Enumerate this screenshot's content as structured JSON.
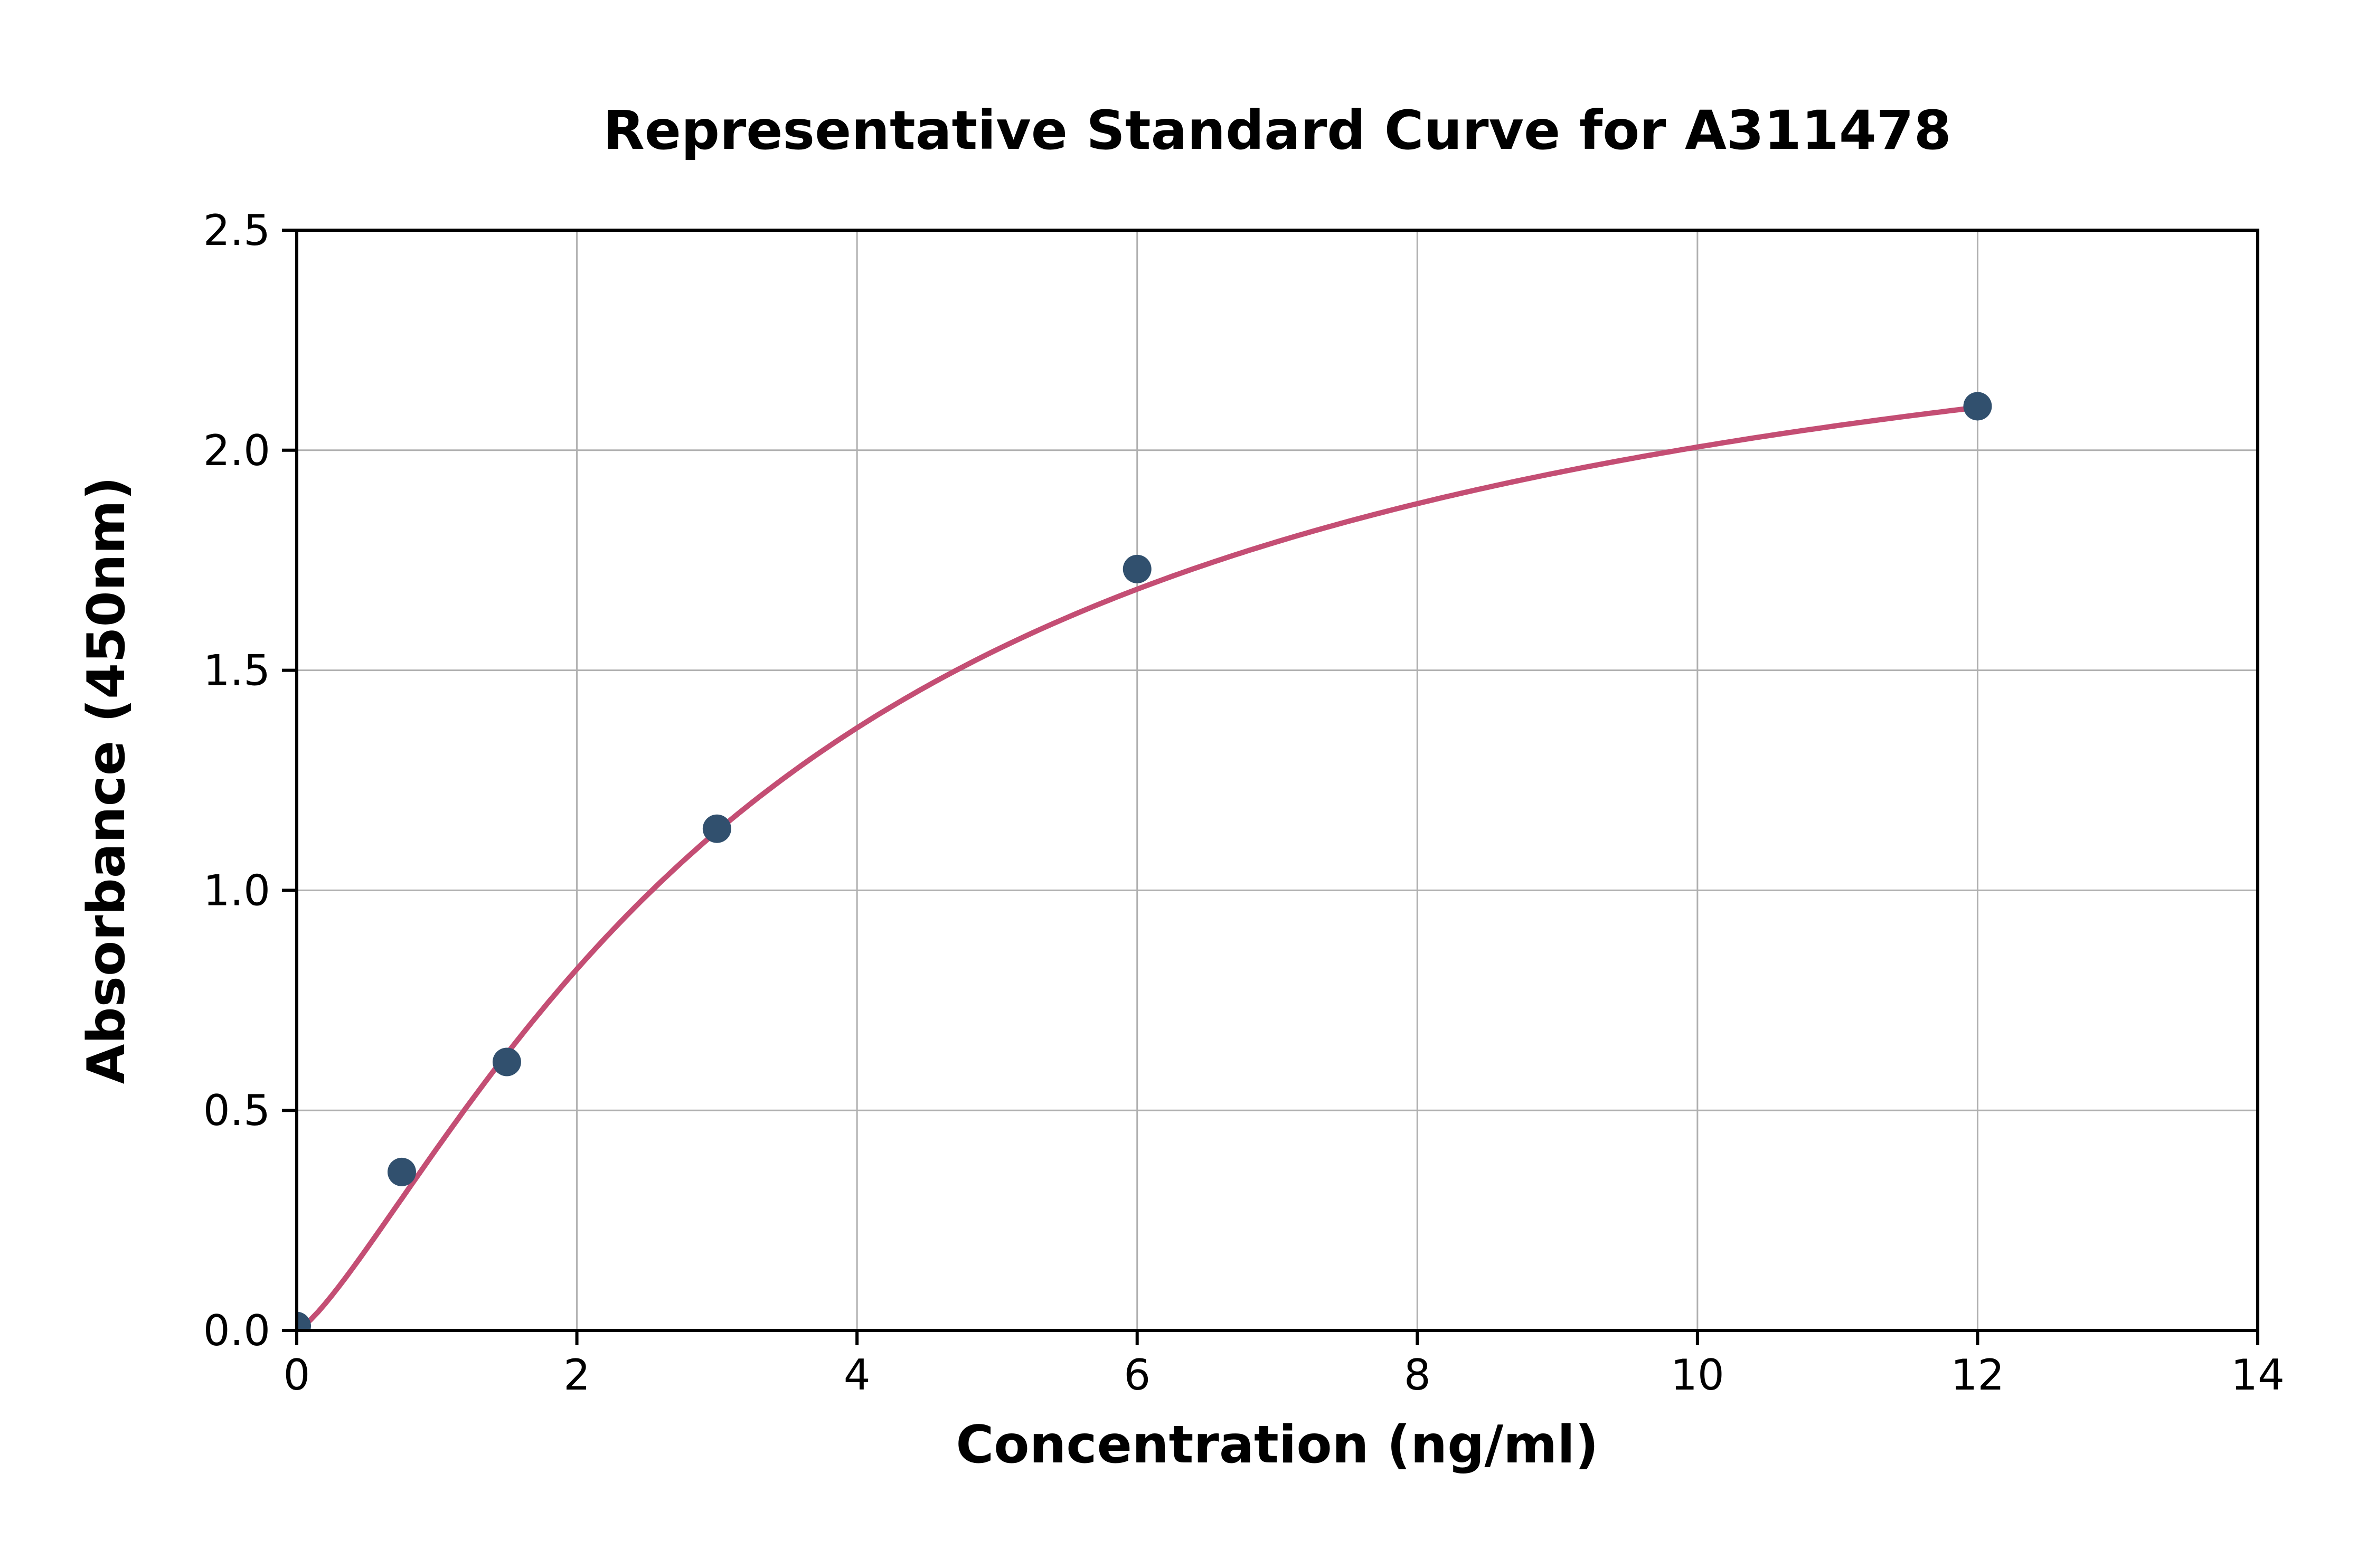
{
  "chart_data": {
    "type": "scatter",
    "title": "Representative Standard Curve for A311478",
    "xlabel": "Concentration (ng/ml)",
    "ylabel": "Absorbance (450nm)",
    "xlim": [
      0,
      14
    ],
    "ylim": [
      0,
      2.5
    ],
    "x_ticks": [
      0,
      2,
      4,
      6,
      8,
      10,
      12,
      14
    ],
    "x_tick_labels": [
      "0",
      "2",
      "4",
      "6",
      "8",
      "10",
      "12",
      "14"
    ],
    "y_ticks": [
      0,
      0.5,
      1,
      1.5,
      2,
      2.5
    ],
    "y_tick_labels": [
      "0.0",
      "0.5",
      "1.0",
      "1.5",
      "2.0",
      "2.5"
    ],
    "grid": true,
    "legend": "none",
    "points": [
      [
        0,
        0.01
      ],
      [
        0.75,
        0.36
      ],
      [
        1.5,
        0.61
      ],
      [
        3,
        1.14
      ],
      [
        6,
        1.73
      ],
      [
        12,
        2.1
      ]
    ],
    "fit_curve": {
      "model": "4PL",
      "a": 0,
      "b": 1.3,
      "c": 3.5,
      "d": 2.52,
      "x_start": 0,
      "x_end": 12
    },
    "colors": {
      "curve": "#c44e74",
      "marker": "#31506e",
      "grid": "#b0b0b0",
      "axis": "#000000",
      "background": "#ffffff"
    }
  }
}
